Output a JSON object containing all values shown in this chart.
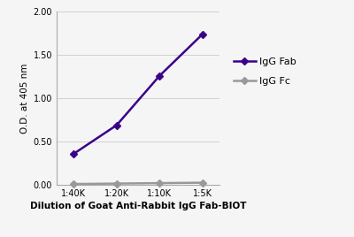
{
  "x_labels": [
    "1:40K",
    "1:20K",
    "1:10K",
    "1:5K"
  ],
  "x_values": [
    1,
    2,
    3,
    4
  ],
  "igg_fab_values": [
    0.36,
    0.69,
    1.26,
    1.74
  ],
  "igg_fc_values": [
    0.01,
    0.015,
    0.02,
    0.025
  ],
  "fab_color": "#3b008a",
  "fc_color": "#999999",
  "fab_label": "IgG Fab",
  "fc_label": "IgG Fc",
  "ylabel": "O.D. at 405 nm",
  "xlabel": "Dilution of Goat Anti-Rabbit IgG Fab-BIOT",
  "ylim": [
    0.0,
    2.0
  ],
  "yticks": [
    0.0,
    0.5,
    1.0,
    1.5,
    2.0
  ],
  "background_color": "#f5f5f5",
  "grid_color": "#cccccc",
  "marker_style": "D",
  "marker_size": 4,
  "linewidth": 1.8
}
